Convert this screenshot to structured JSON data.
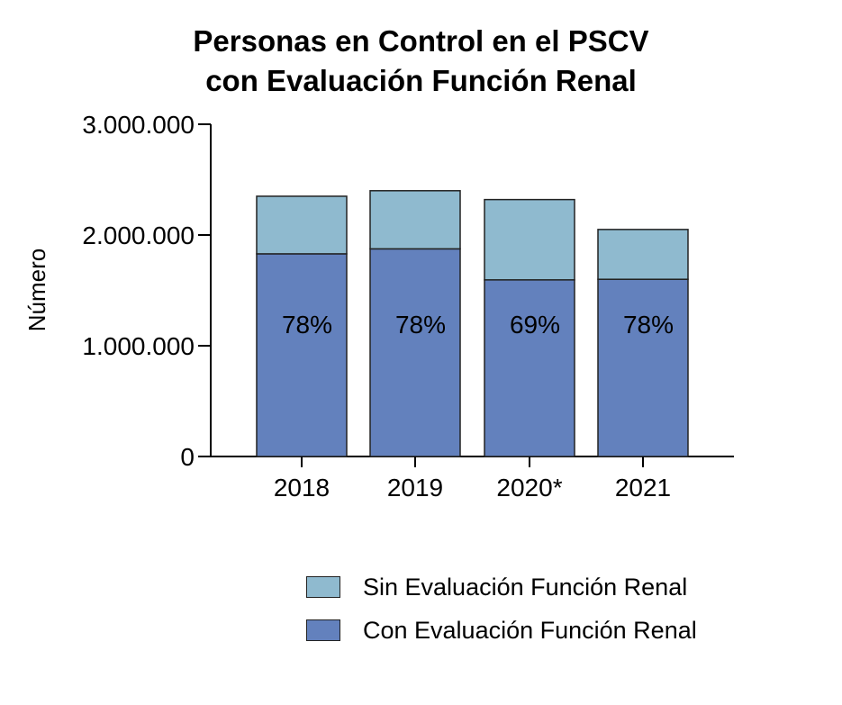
{
  "chart_data": {
    "type": "bar",
    "stacked": true,
    "title_lines": [
      "Personas en Control en el PSCV",
      "con Evaluación Función Renal"
    ],
    "ylabel": "Número",
    "xlabel": "",
    "ylim": [
      0,
      3000000
    ],
    "yticks": [
      0,
      1000000,
      2000000,
      3000000
    ],
    "ytick_labels": [
      "0",
      "1.000.000",
      "2.000.000",
      "3.000.000"
    ],
    "categories": [
      "2018",
      "2019",
      "2020*",
      "2021"
    ],
    "series": [
      {
        "name": "Con Evaluación Función Renal",
        "values": [
          1830000,
          1875000,
          1595000,
          1600000
        ],
        "color": "#6381bd"
      },
      {
        "name": "Sin Evaluación Función Renal",
        "values": [
          520000,
          525000,
          725000,
          450000
        ],
        "color": "#8fbacf"
      }
    ],
    "bar_labels": [
      "78%",
      "78%",
      "69%",
      "78%"
    ],
    "legend": {
      "position": "bottom-right",
      "items": [
        {
          "label": "Sin Evaluación Función Renal",
          "color": "#8fbacf"
        },
        {
          "label": "Con Evaluación Función Renal",
          "color": "#6381bd"
        }
      ]
    },
    "grid": false
  }
}
